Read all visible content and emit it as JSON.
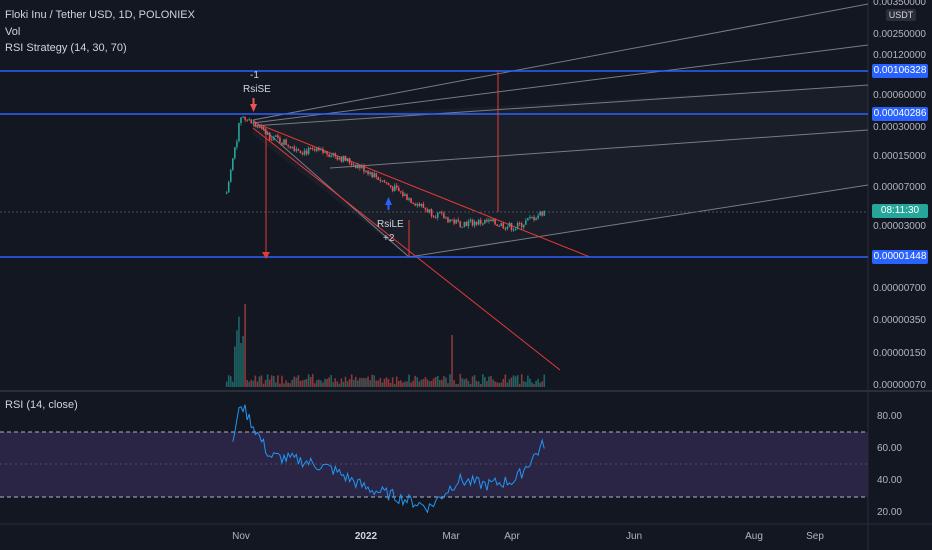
{
  "header": {
    "symbol_line": "Floki Inu / Tether USD, 1D, POLONIEX",
    "volume_label": "Vol",
    "strategy_label": "RSI Strategy (14, 30, 70)",
    "rsi_label": "RSI (14, close)",
    "currency": "USDT"
  },
  "price_axis": {
    "ticks": [
      "0.00350000",
      "0.00250000",
      "0.00120000",
      "0.00060000",
      "0.00030000",
      "0.00015000",
      "0.00007000",
      "0.00003000",
      "0.00000700",
      "0.00000350",
      "0.00000150",
      "0.00000070"
    ],
    "tag_upper": "0.00106328",
    "tag_mid": "0.00040286",
    "tag_lower": "0.00001448",
    "countdown": "08:11:30"
  },
  "rsi_axis": {
    "ticks": [
      "80.00",
      "60.00",
      "40.00",
      "20.00"
    ]
  },
  "time_axis": {
    "ticks": [
      {
        "label": "Nov",
        "bold": false
      },
      {
        "label": "2022",
        "bold": true
      },
      {
        "label": "Mar",
        "bold": false
      },
      {
        "label": "Apr",
        "bold": false
      },
      {
        "label": "Jun",
        "bold": false
      },
      {
        "label": "Aug",
        "bold": false
      },
      {
        "label": "Sep",
        "bold": false
      }
    ]
  },
  "annotations": {
    "short_qty": "-1",
    "short_label": "RsiSE",
    "long_label": "RsiLE",
    "long_qty": "+2"
  },
  "colors": {
    "background": "#131722",
    "up": "#26a69a",
    "down": "#ef5350",
    "level_line": "#2962ff",
    "rsi_line": "#2196f3",
    "rsi_band": "#7e57c2",
    "trend": "#e53935"
  },
  "chart_data": [
    {
      "type": "line",
      "title": "Floki Inu / Tether USD, 1D, POLONIEX",
      "y_scale": "log",
      "x": [
        "2021-10-25",
        "2021-11-01",
        "2021-11-15",
        "2021-12-01",
        "2021-12-15",
        "2022-01-01",
        "2022-01-15",
        "2022-02-01",
        "2022-02-15",
        "2022-03-01",
        "2022-03-15",
        "2022-03-29"
      ],
      "series": [
        {
          "values": [
            6.5e-05,
            0.00038,
            0.00024,
            0.00017,
            0.00016,
            0.00011,
            7e-05,
            4.2e-05,
            3.2e-05,
            3.3e-05,
            2.9e-05,
            4.2e-05
          ]
        }
      ],
      "levels": [
        0.00106328,
        0.00040286,
        1.448e-05
      ]
    },
    {
      "type": "line",
      "title": "RSI (14, close)",
      "x": [
        "2021-10-28",
        "2021-11-01",
        "2021-11-15",
        "2021-12-01",
        "2021-12-15",
        "2022-01-01",
        "2022-01-15",
        "2022-02-01",
        "2022-02-15",
        "2022-03-01",
        "2022-03-15",
        "2022-03-29"
      ],
      "series": [
        {
          "values": [
            65,
            88,
            55,
            52,
            47,
            35,
            30,
            23,
            40,
            37,
            40,
            63
          ]
        }
      ],
      "overbought": 70,
      "oversold": 30,
      "ylim": [
        15,
        95
      ]
    }
  ]
}
